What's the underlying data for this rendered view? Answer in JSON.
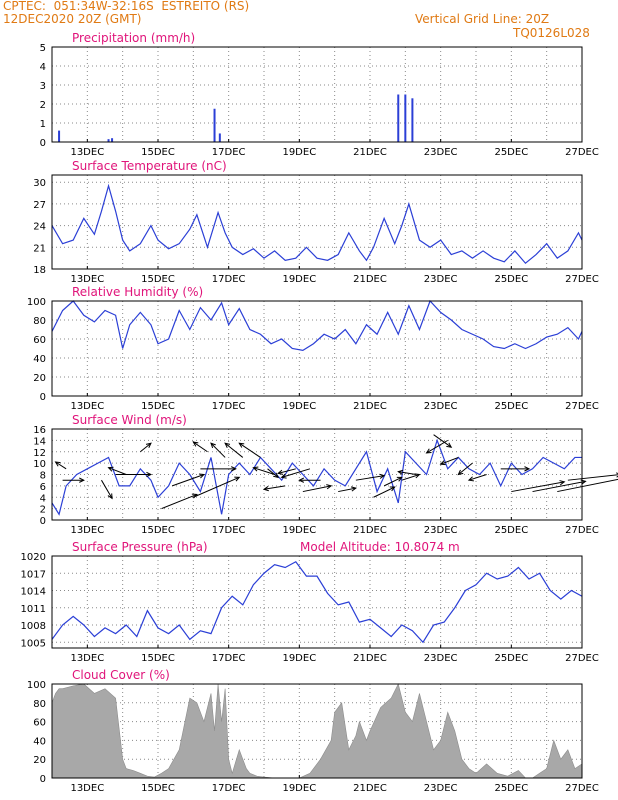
{
  "header": {
    "line1": "CPTEC:  051:34W-32:16S  ESTREITO (RS)",
    "line2": "12DEC2020 20Z (GMT)",
    "grid_note": "Vertical Grid Line: 20Z",
    "code": "TQ0126L028"
  },
  "colors": {
    "header": "#e07a14",
    "title": "#e0147a",
    "line": "#2b3fd6",
    "cloud": "#a8a8a8",
    "arrow": "#000000"
  },
  "x_ticks": [
    "13DEC",
    "15DEC",
    "17DEC",
    "19DEC",
    "21DEC",
    "23DEC",
    "25DEC",
    "27DEC"
  ],
  "chart_data": [
    {
      "type": "bar",
      "title": "Precipitation (mm/h)",
      "ylim": [
        0,
        5
      ],
      "yticks": [
        0,
        1,
        2,
        3,
        4,
        5
      ],
      "x_range": [
        12.0,
        27.0
      ],
      "x": [
        12.2,
        13.6,
        13.7,
        16.6,
        16.75,
        21.8,
        22.0,
        22.2
      ],
      "values": [
        0.6,
        0.15,
        0.2,
        1.75,
        0.45,
        2.5,
        2.5,
        2.3
      ]
    },
    {
      "type": "line",
      "title": "Surface Temperature (nC)",
      "ylim": [
        18,
        31
      ],
      "yticks": [
        18,
        21,
        24,
        27,
        30
      ],
      "x_range": [
        12.0,
        27.0
      ],
      "x": [
        12.0,
        12.3,
        12.6,
        12.9,
        13.2,
        13.4,
        13.6,
        13.8,
        14.0,
        14.2,
        14.5,
        14.8,
        15.0,
        15.3,
        15.6,
        15.9,
        16.1,
        16.4,
        16.7,
        16.9,
        17.1,
        17.4,
        17.7,
        18.0,
        18.3,
        18.6,
        18.9,
        19.2,
        19.5,
        19.8,
        20.1,
        20.4,
        20.7,
        20.9,
        21.1,
        21.4,
        21.7,
        21.9,
        22.1,
        22.4,
        22.7,
        23.0,
        23.3,
        23.6,
        23.9,
        24.2,
        24.5,
        24.8,
        25.1,
        25.4,
        25.7,
        26.0,
        26.3,
        26.6,
        26.9,
        27.0
      ],
      "values": [
        24,
        21.5,
        22,
        25,
        22.8,
        26,
        29.5,
        26,
        22,
        20.5,
        21.5,
        24,
        22,
        20.8,
        21.5,
        23.5,
        25.5,
        21,
        25.8,
        23,
        21,
        20,
        20.8,
        19.5,
        20.5,
        19.2,
        19.5,
        21,
        19.5,
        19.2,
        20,
        23,
        20.5,
        19.2,
        21,
        25,
        21.5,
        24,
        27,
        22,
        21,
        22,
        20,
        20.5,
        19.5,
        20.5,
        19.5,
        19,
        20.5,
        18.8,
        20,
        21.5,
        19.5,
        20.5,
        23,
        22
      ]
    },
    {
      "type": "line",
      "title": "Relative Humidity (%)",
      "ylim": [
        0,
        100
      ],
      "yticks": [
        0,
        20,
        40,
        60,
        80,
        100
      ],
      "x_range": [
        12.0,
        27.0
      ],
      "x": [
        12.0,
        12.3,
        12.6,
        12.9,
        13.2,
        13.5,
        13.8,
        14.0,
        14.2,
        14.5,
        14.8,
        15.0,
        15.3,
        15.6,
        15.9,
        16.2,
        16.5,
        16.8,
        17.0,
        17.3,
        17.6,
        17.9,
        18.2,
        18.5,
        18.8,
        19.1,
        19.4,
        19.7,
        20.0,
        20.3,
        20.6,
        20.9,
        21.2,
        21.5,
        21.8,
        22.1,
        22.4,
        22.7,
        23.0,
        23.3,
        23.6,
        23.9,
        24.2,
        24.5,
        24.8,
        25.1,
        25.4,
        25.7,
        26.0,
        26.3,
        26.6,
        26.9,
        27.0
      ],
      "values": [
        68,
        90,
        100,
        85,
        78,
        90,
        85,
        50,
        75,
        88,
        75,
        55,
        60,
        90,
        70,
        93,
        80,
        98,
        75,
        92,
        70,
        65,
        55,
        60,
        50,
        48,
        55,
        65,
        60,
        70,
        55,
        75,
        65,
        88,
        65,
        95,
        70,
        100,
        88,
        80,
        70,
        65,
        60,
        52,
        50,
        55,
        50,
        55,
        62,
        65,
        72,
        60,
        68
      ]
    },
    {
      "type": "line",
      "title": "Surface Wind (m/s)",
      "ylim": [
        0,
        16
      ],
      "yticks": [
        0,
        2,
        4,
        6,
        8,
        10,
        12,
        14,
        16
      ],
      "x_range": [
        12.0,
        27.0
      ],
      "x": [
        12.0,
        12.2,
        12.4,
        12.7,
        13.0,
        13.3,
        13.6,
        13.9,
        14.2,
        14.5,
        14.8,
        15.0,
        15.3,
        15.6,
        15.9,
        16.2,
        16.5,
        16.8,
        17.0,
        17.3,
        17.6,
        17.9,
        18.2,
        18.5,
        18.8,
        19.1,
        19.4,
        19.7,
        20.0,
        20.3,
        20.6,
        20.9,
        21.2,
        21.5,
        21.8,
        22.0,
        22.3,
        22.6,
        22.9,
        23.2,
        23.5,
        23.8,
        24.1,
        24.4,
        24.7,
        25.0,
        25.3,
        25.6,
        25.9,
        26.2,
        26.5,
        26.8,
        27.0
      ],
      "values": [
        3,
        1,
        6,
        8,
        9,
        10,
        11,
        6,
        6,
        9,
        7,
        4,
        6,
        10,
        8,
        5,
        11,
        1,
        8,
        10,
        8,
        11,
        9,
        7,
        10,
        8,
        6,
        9,
        7,
        6,
        9,
        12,
        5,
        9,
        3,
        12,
        10,
        8,
        14,
        9,
        11,
        9,
        8,
        10,
        6,
        10,
        8,
        9,
        11,
        10,
        9,
        11,
        11
      ],
      "arrows": [
        [
          12.3,
          7,
          0.6,
          0
        ],
        [
          12.4,
          9,
          -0.3,
          1.2
        ],
        [
          13.4,
          7,
          0.3,
          -3.2
        ],
        [
          13.8,
          8,
          1.0,
          0
        ],
        [
          14.1,
          8,
          -0.5,
          1.2
        ],
        [
          14.5,
          12,
          0.3,
          1.5
        ],
        [
          15.1,
          2,
          1.0,
          2.5
        ],
        [
          15.4,
          6,
          0.9,
          2.0
        ],
        [
          16.0,
          4,
          1.3,
          3.5
        ],
        [
          16.2,
          9,
          1.0,
          0
        ],
        [
          16.4,
          12,
          -0.4,
          1.7
        ],
        [
          16.9,
          11,
          -0.4,
          2.5
        ],
        [
          17.4,
          11,
          -0.5,
          2.5
        ],
        [
          17.9,
          11,
          -0.6,
          2.5
        ],
        [
          18.1,
          9,
          0.3,
          -1.5
        ],
        [
          18.3,
          8,
          -0.6,
          1.2
        ],
        [
          18.6,
          6,
          -0.6,
          -0.6
        ],
        [
          18.9,
          9,
          -0.5,
          -0.8
        ],
        [
          19.1,
          5,
          0.8,
          1.0
        ],
        [
          19.3,
          9,
          -0.8,
          -1.5
        ],
        [
          19.6,
          7,
          -0.6,
          0
        ],
        [
          20.1,
          5,
          0.5,
          0.6
        ],
        [
          20.6,
          7,
          0.8,
          0.8
        ],
        [
          21.1,
          4,
          0.6,
          1.8
        ],
        [
          21.4,
          6,
          0.5,
          1.5
        ],
        [
          21.9,
          7,
          0.5,
          1.0
        ],
        [
          22.3,
          8,
          -0.5,
          0.5
        ],
        [
          22.8,
          15,
          0.5,
          -2.2
        ],
        [
          23.2,
          14,
          -0.6,
          -2.2
        ],
        [
          23.5,
          11,
          -0.5,
          -1.2
        ],
        [
          23.9,
          10,
          -0.4,
          -2.0
        ],
        [
          24.3,
          8,
          -0.5,
          -1.0
        ],
        [
          24.7,
          9,
          0.8,
          0
        ],
        [
          25.0,
          5,
          1.5,
          1.7
        ],
        [
          25.6,
          5,
          1.5,
          1.8
        ],
        [
          26.3,
          5,
          2.0,
          2.5
        ],
        [
          26.6,
          7,
          1.5,
          1.0
        ]
      ]
    },
    {
      "type": "line",
      "title": "Surface Pressure (hPa)",
      "annotation": "Model Altitude: 10.8074 m",
      "ylim": [
        1004,
        1020
      ],
      "yticks": [
        1005,
        1008,
        1011,
        1014,
        1017,
        1020
      ],
      "x_range": [
        12.0,
        27.0
      ],
      "x": [
        12.0,
        12.3,
        12.6,
        12.9,
        13.2,
        13.5,
        13.8,
        14.1,
        14.4,
        14.7,
        15.0,
        15.3,
        15.6,
        15.9,
        16.2,
        16.5,
        16.8,
        17.1,
        17.4,
        17.7,
        18.0,
        18.3,
        18.6,
        18.9,
        19.2,
        19.5,
        19.8,
        20.1,
        20.4,
        20.7,
        21.0,
        21.3,
        21.6,
        21.9,
        22.2,
        22.5,
        22.8,
        23.1,
        23.4,
        23.7,
        24.0,
        24.3,
        24.6,
        24.9,
        25.2,
        25.5,
        25.8,
        26.1,
        26.4,
        26.7,
        27.0
      ],
      "values": [
        1005.5,
        1008,
        1009.5,
        1008,
        1006,
        1007.5,
        1006.5,
        1008,
        1006,
        1010.5,
        1007.5,
        1006.5,
        1008,
        1005.5,
        1007,
        1006.5,
        1011,
        1013,
        1011.5,
        1015,
        1017,
        1018.5,
        1018,
        1019,
        1016.5,
        1016.5,
        1013.5,
        1011.5,
        1012,
        1008.5,
        1009,
        1007.5,
        1006,
        1008,
        1007,
        1005,
        1008,
        1008.5,
        1011,
        1014,
        1015,
        1017,
        1016,
        1016.5,
        1018,
        1016,
        1017,
        1014,
        1012.5,
        1014,
        1013
      ]
    },
    {
      "type": "area",
      "title": "Cloud Cover (%)",
      "ylim": [
        0,
        100
      ],
      "yticks": [
        0,
        20,
        40,
        60,
        80,
        100
      ],
      "x_range": [
        12.0,
        27.0
      ],
      "x": [
        12.0,
        12.1,
        12.2,
        12.3,
        12.6,
        12.9,
        13.2,
        13.5,
        13.8,
        14.0,
        14.1,
        14.3,
        14.5,
        14.7,
        14.9,
        15.1,
        15.3,
        15.6,
        15.9,
        16.1,
        16.3,
        16.5,
        16.6,
        16.7,
        16.8,
        16.9,
        17.0,
        17.1,
        17.3,
        17.5,
        17.6,
        17.8,
        18.0,
        18.3,
        18.6,
        19.0,
        19.3,
        19.6,
        19.9,
        20.0,
        20.2,
        20.4,
        20.6,
        20.7,
        20.9,
        21.0,
        21.3,
        21.6,
        21.8,
        22.0,
        22.2,
        22.4,
        22.6,
        22.8,
        23.0,
        23.2,
        23.4,
        23.6,
        23.8,
        24.0,
        24.3,
        24.6,
        24.9,
        25.2,
        25.4,
        25.6,
        25.8,
        26.0,
        26.2,
        26.4,
        26.6,
        26.8,
        27.0
      ],
      "values": [
        80,
        90,
        95,
        95,
        98,
        100,
        90,
        95,
        85,
        20,
        10,
        8,
        5,
        2,
        1,
        5,
        10,
        30,
        85,
        80,
        60,
        90,
        50,
        100,
        60,
        95,
        20,
        5,
        30,
        10,
        5,
        2,
        1,
        0,
        0,
        0,
        5,
        20,
        40,
        70,
        80,
        30,
        45,
        60,
        40,
        50,
        75,
        85,
        100,
        70,
        60,
        90,
        60,
        30,
        40,
        70,
        50,
        20,
        10,
        5,
        15,
        5,
        2,
        8,
        0,
        0,
        5,
        10,
        40,
        20,
        30,
        10,
        15
      ]
    }
  ]
}
